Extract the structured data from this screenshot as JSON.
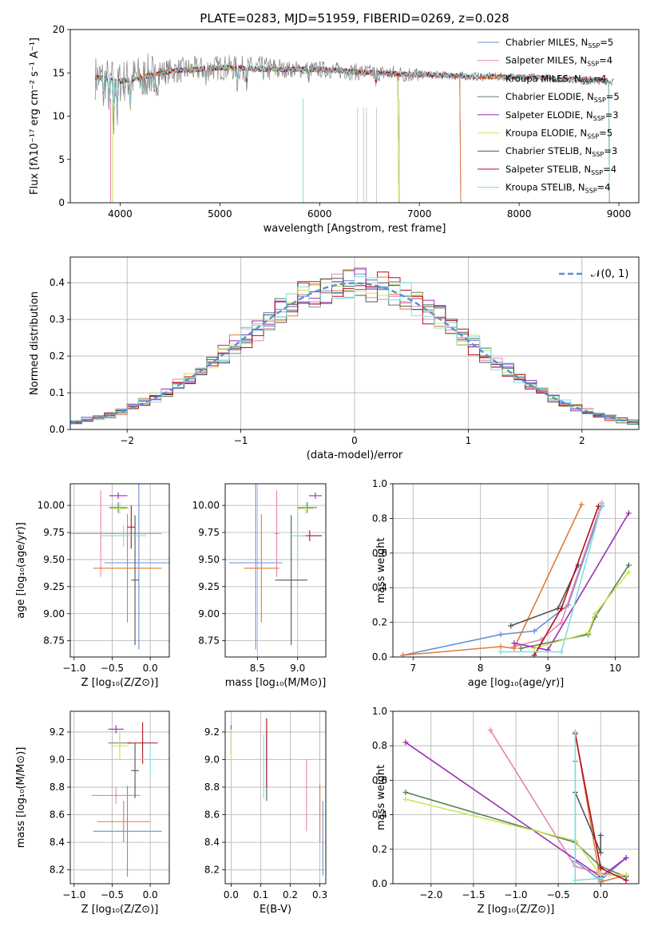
{
  "palette": {
    "chabrier_miles": "#6b8fd6",
    "salpeter_miles": "#e882b4",
    "kroupa_miles": "#e07b39",
    "chabrier_elodie": "#5a7d5a",
    "salpeter_elodie": "#9b30b5",
    "kroupa_elodie": "#cde65a",
    "chabrier_stelib": "#555555",
    "salpeter_stelib": "#b01020",
    "kroupa_stelib": "#80dede",
    "normal": "#5b8fd0"
  },
  "chart_data": [
    {
      "id": "spectrum",
      "type": "line",
      "title": "PLATE=0283, MJD=51959, FIBERID=0269, z=0.028",
      "xlabel": "wavelength [Angstrom, rest frame]",
      "ylabel": "Flux [fλ10⁻¹⁷ erg cm⁻² s⁻¹ A⁻¹]",
      "xlim": [
        3500,
        9200
      ],
      "ylim": [
        0,
        20
      ],
      "xticks": [
        4000,
        5000,
        6000,
        7000,
        8000,
        9000
      ],
      "yticks": [
        0,
        5,
        10,
        15,
        20
      ],
      "legend_position": "upper-right",
      "series": [
        {
          "name": "Chabrier MILES, N",
          "sub": "SSP",
          "suffix": "=5",
          "color": "chabrier_miles",
          "xmax": 7410
        },
        {
          "name": "Salpeter MILES, N",
          "sub": "SSP",
          "suffix": "=4",
          "color": "salpeter_miles",
          "xmax": 7410
        },
        {
          "name": "Kroupa MILES, N",
          "sub": "SSP",
          "suffix": "=4",
          "color": "kroupa_miles",
          "xmax": 7410
        },
        {
          "name": "Chabrier ELODIE, N",
          "sub": "SSP",
          "suffix": "=5",
          "color": "chabrier_elodie",
          "xmax": 6790
        },
        {
          "name": "Salpeter ELODIE, N",
          "sub": "SSP",
          "suffix": "=3",
          "color": "salpeter_elodie",
          "xmax": 6790
        },
        {
          "name": "Kroupa ELODIE, N",
          "sub": "SSP",
          "suffix": "=5",
          "color": "kroupa_elodie",
          "xmax": 6790
        },
        {
          "name": "Chabrier STELIB, N",
          "sub": "SSP",
          "suffix": "=3",
          "color": "chabrier_stelib",
          "xmax": 8900
        },
        {
          "name": "Salpeter STELIB, N",
          "sub": "SSP",
          "suffix": "=4",
          "color": "salpeter_stelib",
          "xmax": 8900
        },
        {
          "name": "Kroupa STELIB, N",
          "sub": "SSP",
          "suffix": "=4",
          "color": "kroupa_stelib",
          "xmax": 8900
        }
      ],
      "data_color": "#808080",
      "data_range": [
        3750,
        8950
      ],
      "shape": [
        [
          3750,
          14.5
        ],
        [
          4000,
          14.0
        ],
        [
          4500,
          15.2
        ],
        [
          5000,
          15.6
        ],
        [
          5500,
          15.4
        ],
        [
          6000,
          15.4
        ],
        [
          6500,
          15.0
        ],
        [
          7000,
          14.8
        ],
        [
          7500,
          14.6
        ],
        [
          8000,
          14.5
        ],
        [
          8500,
          14.3
        ],
        [
          9000,
          14.0
        ]
      ]
    },
    {
      "id": "residuals",
      "type": "histogram",
      "xlabel": "(data-model)/error",
      "ylabel": "Normed distribution",
      "xlim": [
        -2.5,
        2.5
      ],
      "ylim": [
        0,
        0.47
      ],
      "xticks": [
        -2,
        -1,
        0,
        1,
        2
      ],
      "yticks": [
        0.0,
        0.1,
        0.2,
        0.3,
        0.4
      ],
      "bin_width": 0.1,
      "legend": "𝒩(0, 1)",
      "legend_position": "upper-right"
    },
    {
      "id": "age_vs_Z",
      "type": "errorbar",
      "xlabel": "Z [log₁₀(Z/Z⊙)]",
      "ylabel": "age  [log₁₀(age/yr)]",
      "xlim": [
        -1.05,
        0.25
      ],
      "ylim": [
        8.6,
        10.2
      ],
      "xticks": [
        -1.0,
        -0.5,
        0.0
      ],
      "yticks": [
        8.75,
        9.0,
        9.25,
        9.5,
        9.75,
        10.0
      ],
      "points": [
        {
          "color": "chabrier_miles",
          "x": -0.15,
          "xerr": 0.45,
          "y": 9.47,
          "yerr": 0.8
        },
        {
          "color": "salpeter_miles",
          "x": -0.65,
          "xerr": 0.8,
          "y": 9.74,
          "yerr": 0.4
        },
        {
          "color": "kroupa_miles",
          "x": -0.3,
          "xerr": 0.45,
          "y": 9.42,
          "yerr": 0.5
        },
        {
          "color": "chabrier_elodie",
          "x": -0.42,
          "xerr": 0.12,
          "y": 9.98,
          "yerr": 0.05
        },
        {
          "color": "salpeter_elodie",
          "x": -0.42,
          "xerr": 0.12,
          "y": 10.09,
          "yerr": 0.03
        },
        {
          "color": "kroupa_elodie",
          "x": -0.4,
          "xerr": 0.12,
          "y": 9.97,
          "yerr": 0.05
        },
        {
          "color": "chabrier_stelib",
          "x": -0.2,
          "xerr": 0.05,
          "y": 9.31,
          "yerr": 0.6
        },
        {
          "color": "salpeter_stelib",
          "x": -0.25,
          "xerr": 0.05,
          "y": 9.8,
          "yerr": 0.2
        },
        {
          "color": "kroupa_stelib",
          "x": -0.35,
          "xerr": 0.3,
          "y": 9.72,
          "yerr": 0.1
        }
      ]
    },
    {
      "id": "age_vs_mass",
      "type": "errorbar",
      "xlabel": "mass [log₁₀(M/M⊙)]",
      "ylabel": "",
      "xlim": [
        8.1,
        9.35
      ],
      "ylim": [
        8.6,
        10.2
      ],
      "xticks": [
        8.5,
        9.0
      ],
      "yticks": [
        8.75,
        9.0,
        9.25,
        9.5,
        9.75,
        10.0
      ],
      "points": [
        {
          "color": "chabrier_miles",
          "x": 8.48,
          "xerr": 0.33,
          "y": 9.47,
          "yerr": 0.8
        },
        {
          "color": "salpeter_miles",
          "x": 8.74,
          "xerr": 0.03,
          "y": 9.74,
          "yerr": 0.4
        },
        {
          "color": "kroupa_miles",
          "x": 8.55,
          "xerr": 0.22,
          "y": 9.42,
          "yerr": 0.5
        },
        {
          "color": "chabrier_elodie",
          "x": 9.12,
          "xerr": 0.12,
          "y": 9.98,
          "yerr": 0.05
        },
        {
          "color": "salpeter_elodie",
          "x": 9.22,
          "xerr": 0.08,
          "y": 10.09,
          "yerr": 0.03
        },
        {
          "color": "kroupa_elodie",
          "x": 9.1,
          "xerr": 0.1,
          "y": 9.97,
          "yerr": 0.05
        },
        {
          "color": "chabrier_stelib",
          "x": 8.92,
          "xerr": 0.2,
          "y": 9.31,
          "yerr": 0.6
        },
        {
          "color": "salpeter_stelib",
          "x": 9.15,
          "xerr": 0.15,
          "y": 9.72,
          "yerr": 0.05
        },
        {
          "color": "kroupa_stelib",
          "x": 9.0,
          "xerr": 0.1,
          "y": 9.72,
          "yerr": 0.3
        }
      ]
    },
    {
      "id": "weight_vs_age",
      "type": "line",
      "xlabel": "age  [log₁₀(age/yr)]",
      "ylabel": "mass weight",
      "xlim": [
        6.7,
        10.35
      ],
      "ylim": [
        0,
        1
      ],
      "xticks": [
        7,
        8,
        9,
        10
      ],
      "yticks": [
        0.0,
        0.2,
        0.4,
        0.6,
        0.8,
        1.0
      ],
      "series": [
        {
          "color": "chabrier_miles",
          "x": [
            6.85,
            8.3,
            8.8,
            9.3,
            9.8
          ],
          "y": [
            0.01,
            0.13,
            0.15,
            0.3,
            0.87
          ]
        },
        {
          "color": "salpeter_miles",
          "x": [
            8.5,
            8.9,
            9.2,
            9.8
          ],
          "y": [
            0.06,
            0.1,
            0.2,
            0.89
          ]
        },
        {
          "color": "kroupa_miles",
          "x": [
            6.85,
            8.3,
            8.5,
            9.5
          ],
          "y": [
            0.01,
            0.06,
            0.05,
            0.88
          ]
        },
        {
          "color": "chabrier_elodie",
          "x": [
            8.6,
            9.6,
            9.7,
            10.2
          ],
          "y": [
            0.05,
            0.13,
            0.23,
            0.53
          ]
        },
        {
          "color": "salpeter_elodie",
          "x": [
            8.5,
            9.0,
            10.2
          ],
          "y": [
            0.08,
            0.04,
            0.83
          ]
        },
        {
          "color": "kroupa_elodie",
          "x": [
            8.8,
            9.6,
            9.7,
            10.2
          ],
          "y": [
            0.05,
            0.14,
            0.25,
            0.49
          ]
        },
        {
          "color": "chabrier_stelib",
          "x": [
            8.45,
            9.15,
            9.45
          ],
          "y": [
            0.18,
            0.28,
            0.53
          ]
        },
        {
          "color": "salpeter_stelib",
          "x": [
            8.8,
            9.2,
            9.75
          ],
          "y": [
            0.01,
            0.28,
            0.87
          ]
        },
        {
          "color": "kroupa_stelib",
          "x": [
            8.3,
            9.2,
            9.8
          ],
          "y": [
            0.03,
            0.03,
            0.88
          ]
        }
      ]
    },
    {
      "id": "mass_vs_Z",
      "type": "errorbar",
      "xlabel": "Z [log₁₀(Z/Z⊙)]",
      "ylabel": "mass [log₁₀(M/M⊙)]",
      "xlim": [
        -1.05,
        0.25
      ],
      "ylim": [
        8.1,
        9.35
      ],
      "xticks": [
        -1.0,
        -0.5,
        0.0
      ],
      "yticks": [
        8.2,
        8.4,
        8.6,
        8.8,
        9.0,
        9.2
      ],
      "points": [
        {
          "color": "chabrier_miles",
          "x": -0.3,
          "xerr": 0.45,
          "y": 8.48,
          "yerr": 0.33
        },
        {
          "color": "salpeter_miles",
          "x": -0.45,
          "xerr": 0.32,
          "y": 8.74,
          "yerr": 0.06
        },
        {
          "color": "kroupa_miles",
          "x": -0.35,
          "xerr": 0.35,
          "y": 8.55,
          "yerr": 0.15
        },
        {
          "color": "chabrier_elodie",
          "x": -0.4,
          "xerr": 0.15,
          "y": 9.12,
          "yerr": 0.08
        },
        {
          "color": "salpeter_elodie",
          "x": -0.45,
          "xerr": 0.1,
          "y": 9.22,
          "yerr": 0.03
        },
        {
          "color": "kroupa_elodie",
          "x": -0.4,
          "xerr": 0.12,
          "y": 9.1,
          "yerr": 0.1
        },
        {
          "color": "chabrier_stelib",
          "x": -0.2,
          "xerr": 0.05,
          "y": 8.92,
          "yerr": 0.2
        },
        {
          "color": "salpeter_stelib",
          "x": -0.1,
          "xerr": 0.2,
          "y": 9.12,
          "yerr": 0.15
        },
        {
          "color": "kroupa_stelib",
          "x": 0.0,
          "xerr": 0.15,
          "y": 9.0,
          "yerr": 0.1
        }
      ]
    },
    {
      "id": "mass_vs_ebv",
      "type": "errorbar",
      "xlabel": "E(B-V)",
      "ylabel": "",
      "xlim": [
        -0.02,
        0.32
      ],
      "ylim": [
        8.1,
        9.35
      ],
      "xticks": [
        0.0,
        0.1,
        0.2,
        0.3
      ],
      "yticks": [
        8.2,
        8.4,
        8.6,
        8.8,
        9.0,
        9.2
      ],
      "points": [
        {
          "color": "chabrier_miles",
          "x": 0.31,
          "xerr": 0.0,
          "y": 8.43,
          "yerr": 0.27
        },
        {
          "color": "salpeter_miles",
          "x": 0.255,
          "xerr": 0.0,
          "y": 8.74,
          "yerr": 0.26
        },
        {
          "color": "kroupa_miles",
          "x": 0.3,
          "xerr": 0.0,
          "y": 8.61,
          "yerr": 0.21
        },
        {
          "color": "chabrier_elodie",
          "x": 0.0,
          "xerr": 0.0,
          "y": 9.12,
          "yerr": 0.08
        },
        {
          "color": "salpeter_elodie",
          "x": 0.0,
          "xerr": 0.0,
          "y": 9.22,
          "yerr": 0.03
        },
        {
          "color": "kroupa_elodie",
          "x": 0.0,
          "xerr": 0.0,
          "y": 9.1,
          "yerr": 0.12
        },
        {
          "color": "chabrier_stelib",
          "x": 0.12,
          "xerr": 0.0,
          "y": 8.95,
          "yerr": 0.25
        },
        {
          "color": "salpeter_stelib",
          "x": 0.12,
          "xerr": 0.0,
          "y": 9.05,
          "yerr": 0.25
        },
        {
          "color": "kroupa_stelib",
          "x": 0.11,
          "xerr": 0.0,
          "y": 8.95,
          "yerr": 0.23
        }
      ]
    },
    {
      "id": "weight_vs_Z",
      "type": "line",
      "xlabel": "Z [log₁₀(Z/Z⊙)]",
      "ylabel": "mass weight",
      "xlim": [
        -2.45,
        0.45
      ],
      "ylim": [
        0,
        1
      ],
      "xticks": [
        -2.0,
        -1.5,
        -1.0,
        -0.5,
        0.0
      ],
      "yticks": [
        0.0,
        0.2,
        0.4,
        0.6,
        0.8,
        1.0
      ],
      "series": [
        {
          "color": "chabrier_miles",
          "x": [
            -0.3,
            -0.3,
            0.0,
            0.3
          ],
          "y": [
            0.71,
            0.13,
            0.02,
            0.15
          ]
        },
        {
          "color": "salpeter_miles",
          "x": [
            -1.3,
            -0.3,
            0.0,
            0.3
          ],
          "y": [
            0.89,
            0.1,
            0.06,
            0.04
          ]
        },
        {
          "color": "kroupa_miles",
          "x": [
            -0.3,
            0.0,
            0.3
          ],
          "y": [
            0.88,
            0.01,
            0.05
          ]
        },
        {
          "color": "chabrier_elodie",
          "x": [
            -2.3,
            -0.3,
            0.0,
            0.3
          ],
          "y": [
            0.53,
            0.24,
            0.1,
            0.04
          ]
        },
        {
          "color": "salpeter_elodie",
          "x": [
            -2.3,
            0.0,
            0.3
          ],
          "y": [
            0.82,
            0.04,
            0.15
          ]
        },
        {
          "color": "kroupa_elodie",
          "x": [
            -2.3,
            -0.3,
            0.0,
            0.3
          ],
          "y": [
            0.49,
            0.25,
            0.05,
            0.05
          ]
        },
        {
          "color": "chabrier_stelib",
          "x": [
            -0.3,
            0.0,
            0.0
          ],
          "y": [
            0.53,
            0.18,
            0.28
          ]
        },
        {
          "color": "salpeter_stelib",
          "x": [
            -0.3,
            0.0,
            0.3
          ],
          "y": [
            0.87,
            0.09,
            0.02
          ]
        },
        {
          "color": "kroupa_stelib",
          "x": [
            -0.3,
            -0.3,
            0.0
          ],
          "y": [
            0.88,
            0.02,
            0.03
          ]
        }
      ]
    }
  ]
}
